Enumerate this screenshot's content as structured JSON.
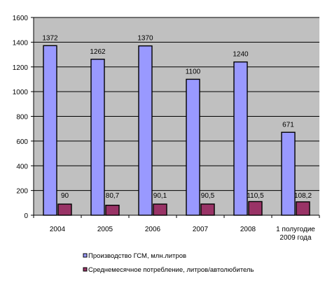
{
  "chart_data": {
    "type": "bar",
    "title": "",
    "xlabel": "",
    "ylabel": "",
    "ylim": [
      0,
      1600
    ],
    "yticks": [
      0,
      200,
      400,
      600,
      800,
      1000,
      1200,
      1400,
      1600
    ],
    "grid": true,
    "legend_position": "bottom",
    "plot_background": "#c0c0c0",
    "categories": [
      [
        "2004"
      ],
      [
        "2005"
      ],
      [
        "2006"
      ],
      [
        "2007"
      ],
      [
        "2008"
      ],
      [
        "1 полугодие",
        "2009 года"
      ]
    ],
    "series": [
      {
        "name": "Производство ГСМ, млн.литров",
        "color": "#9999ff",
        "values": [
          1372,
          1262,
          1370,
          1100,
          1240,
          671
        ],
        "labels": [
          "1372",
          "1262",
          "1370",
          "1100",
          "1240",
          "671"
        ]
      },
      {
        "name": "Среднемесячное потребление, литров/автолюбитель",
        "color": "#993366",
        "values": [
          90,
          80.7,
          90.1,
          90.5,
          110.5,
          108.2
        ],
        "labels": [
          "90",
          "80,7",
          "90,1",
          "90,5",
          "110,5",
          "108,2"
        ]
      }
    ]
  }
}
